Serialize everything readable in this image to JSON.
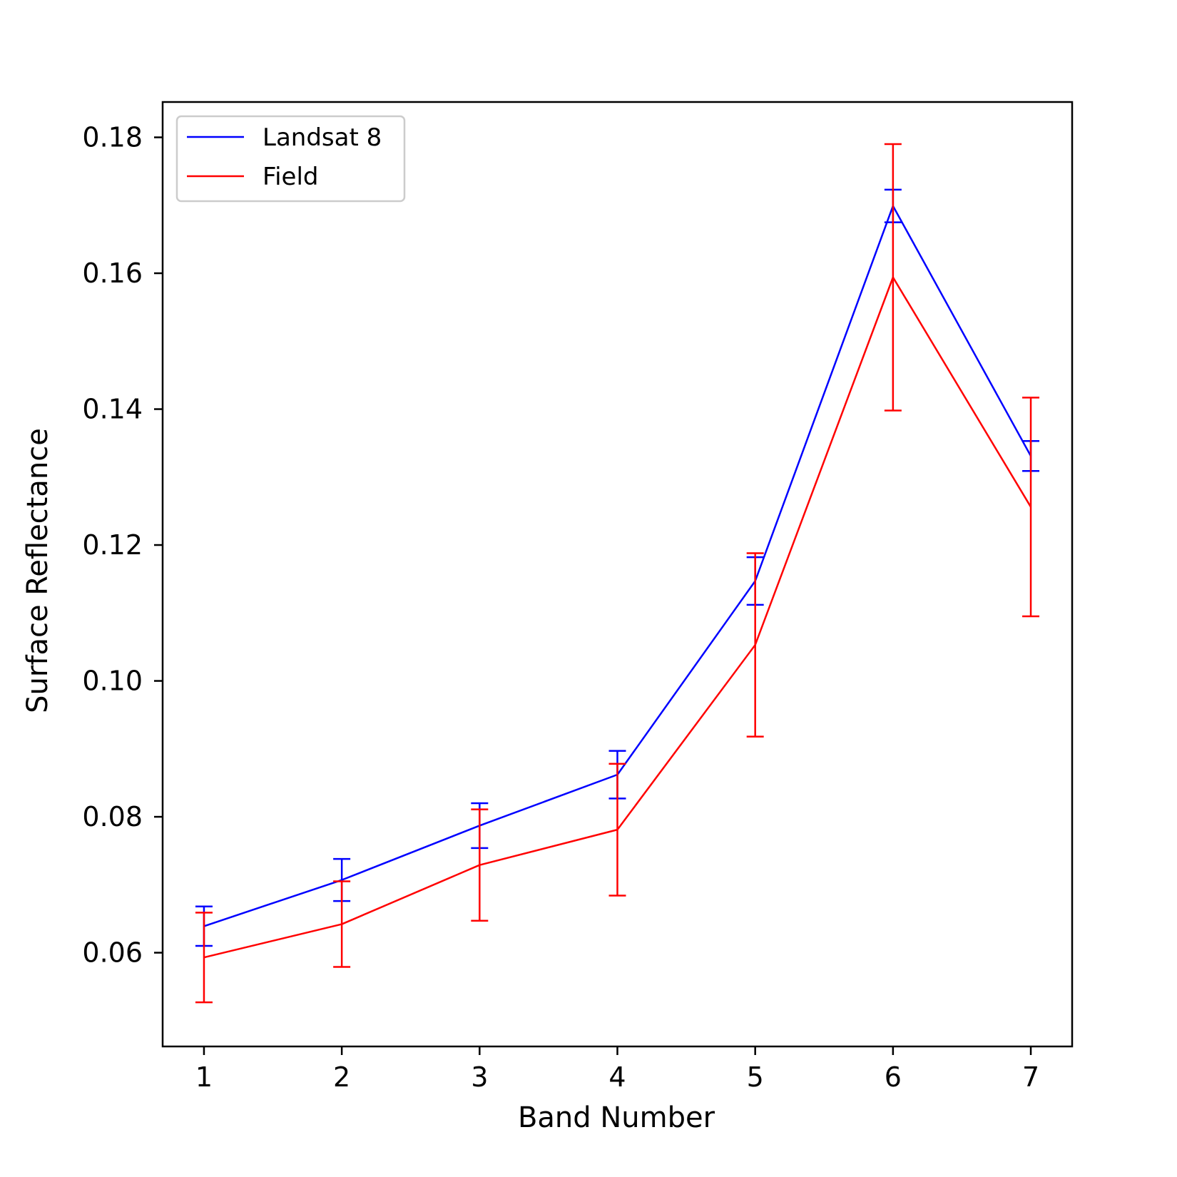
{
  "chart_data": {
    "type": "line",
    "title": "",
    "xlabel": "Band Number",
    "ylabel": "Surface Reflectance",
    "x": [
      1,
      2,
      3,
      4,
      5,
      6,
      7
    ],
    "xlim": [
      0.7,
      7.3
    ],
    "ylim": [
      0.0462,
      0.1852
    ],
    "xticks": [
      "1",
      "2",
      "3",
      "4",
      "5",
      "6",
      "7"
    ],
    "yticks": [
      "0.06",
      "0.08",
      "0.10",
      "0.12",
      "0.14",
      "0.16",
      "0.18"
    ],
    "grid": false,
    "legend_position": "upper-left",
    "series": [
      {
        "name": "Landsat 8",
        "color": "#0000ff",
        "values": [
          0.0639,
          0.0707,
          0.0787,
          0.0862,
          0.1147,
          0.1699,
          0.1331
        ],
        "errors": [
          0.0029,
          0.0031,
          0.0033,
          0.0035,
          0.0035,
          0.0024,
          0.0022
        ]
      },
      {
        "name": "Field",
        "color": "#ff0000",
        "values": [
          0.0593,
          0.0642,
          0.0729,
          0.0781,
          0.1053,
          0.1594,
          0.1256
        ],
        "errors": [
          0.0066,
          0.0063,
          0.0082,
          0.0097,
          0.0135,
          0.0196,
          0.0161
        ]
      }
    ]
  }
}
